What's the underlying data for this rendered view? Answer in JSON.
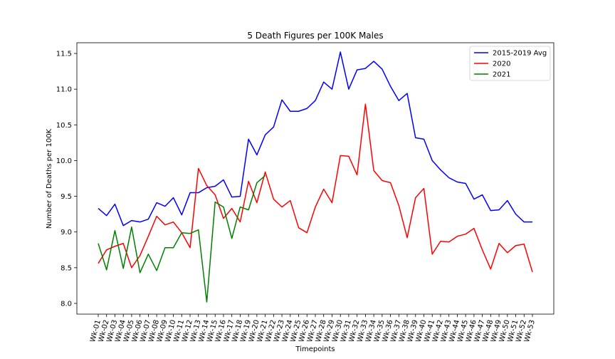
{
  "chart_data": {
    "type": "line",
    "title": "5 Death Figures per 100K Males",
    "xlabel": "Timepoints",
    "ylabel": "Number of Deaths per 100K",
    "ylim": [
      7.85,
      11.65
    ],
    "yticks": [
      "8.0",
      "8.5",
      "9.0",
      "9.5",
      "10.0",
      "10.5",
      "11.0",
      "11.5"
    ],
    "legend_position": "top-right",
    "grid": false,
    "categories": [
      "Wk-01",
      "Wk-02",
      "Wk-03",
      "Wk-04",
      "Wk-05",
      "Wk-06",
      "Wk-07",
      "Wk-08",
      "Wk-09",
      "Wk-10",
      "Wk-11",
      "Wk-12",
      "Wk-13",
      "Wk-14",
      "Wk-15",
      "Wk-16",
      "Wk-17",
      "Wk-18",
      "Wk-19",
      "Wk-20",
      "Wk-21",
      "Wk-22",
      "Wk-23",
      "Wk-24",
      "Wk-25",
      "Wk-26",
      "Wk-27",
      "Wk-28",
      "Wk-29",
      "Wk-30",
      "Wk-31",
      "Wk-32",
      "Wk-33",
      "Wk-34",
      "Wk-35",
      "Wk-36",
      "Wk-37",
      "Wk-38",
      "Wk-39",
      "Wk-40",
      "Wk-41",
      "Wk-42",
      "Wk-43",
      "Wk-44",
      "Wk-45",
      "Wk-46",
      "Wk-47",
      "Wk-48",
      "Wk-49",
      "Wk-50",
      "Wk-51",
      "Wk-52",
      "Wk-53"
    ],
    "series": [
      {
        "name": "2015-2019 Avg",
        "color": "#0000ff",
        "values": [
          9.33,
          9.23,
          9.39,
          9.09,
          9.16,
          9.14,
          9.18,
          9.41,
          9.36,
          9.48,
          9.24,
          9.55,
          9.55,
          9.62,
          9.64,
          9.73,
          9.49,
          9.5,
          10.3,
          10.08,
          10.36,
          10.47,
          10.85,
          10.69,
          10.69,
          10.73,
          10.84,
          11.1,
          11.0,
          11.52,
          11.0,
          11.27,
          11.29,
          11.39,
          11.28,
          11.04,
          10.84,
          10.94,
          10.32,
          10.3,
          10.0,
          9.87,
          9.76,
          9.7,
          9.68,
          9.46,
          9.52,
          9.3,
          9.31,
          9.44,
          9.25,
          9.14,
          9.14
        ]
      },
      {
        "name": "2020",
        "color": "#ff0000",
        "values": [
          8.56,
          8.75,
          8.8,
          8.84,
          8.5,
          8.67,
          8.94,
          9.22,
          9.1,
          9.14,
          8.99,
          8.78,
          9.89,
          9.65,
          9.52,
          9.19,
          9.33,
          9.14,
          9.71,
          9.41,
          9.84,
          9.46,
          9.35,
          9.44,
          9.06,
          8.99,
          9.35,
          9.6,
          9.41,
          10.07,
          10.06,
          9.8,
          10.79,
          9.86,
          9.72,
          9.69,
          9.37,
          8.92,
          9.48,
          9.61,
          8.69,
          8.87,
          8.86,
          8.94,
          8.97,
          9.05,
          8.75,
          8.48,
          8.84,
          8.71,
          8.81,
          8.83,
          8.44
        ]
      },
      {
        "name": "2021",
        "color": "#008000",
        "values": [
          8.84,
          8.47,
          9.02,
          8.49,
          9.07,
          8.43,
          8.69,
          8.46,
          8.78,
          8.78,
          8.99,
          8.98,
          9.03,
          8.02,
          9.42,
          9.35,
          8.91,
          9.35,
          9.31,
          9.69,
          9.79,
          null,
          null,
          null,
          null,
          null,
          null,
          null,
          null,
          null,
          null,
          null,
          null,
          null,
          null,
          null,
          null,
          null,
          null,
          null,
          null,
          null,
          null,
          null,
          null,
          null,
          null,
          null,
          null,
          null,
          null,
          null,
          null
        ]
      }
    ]
  }
}
